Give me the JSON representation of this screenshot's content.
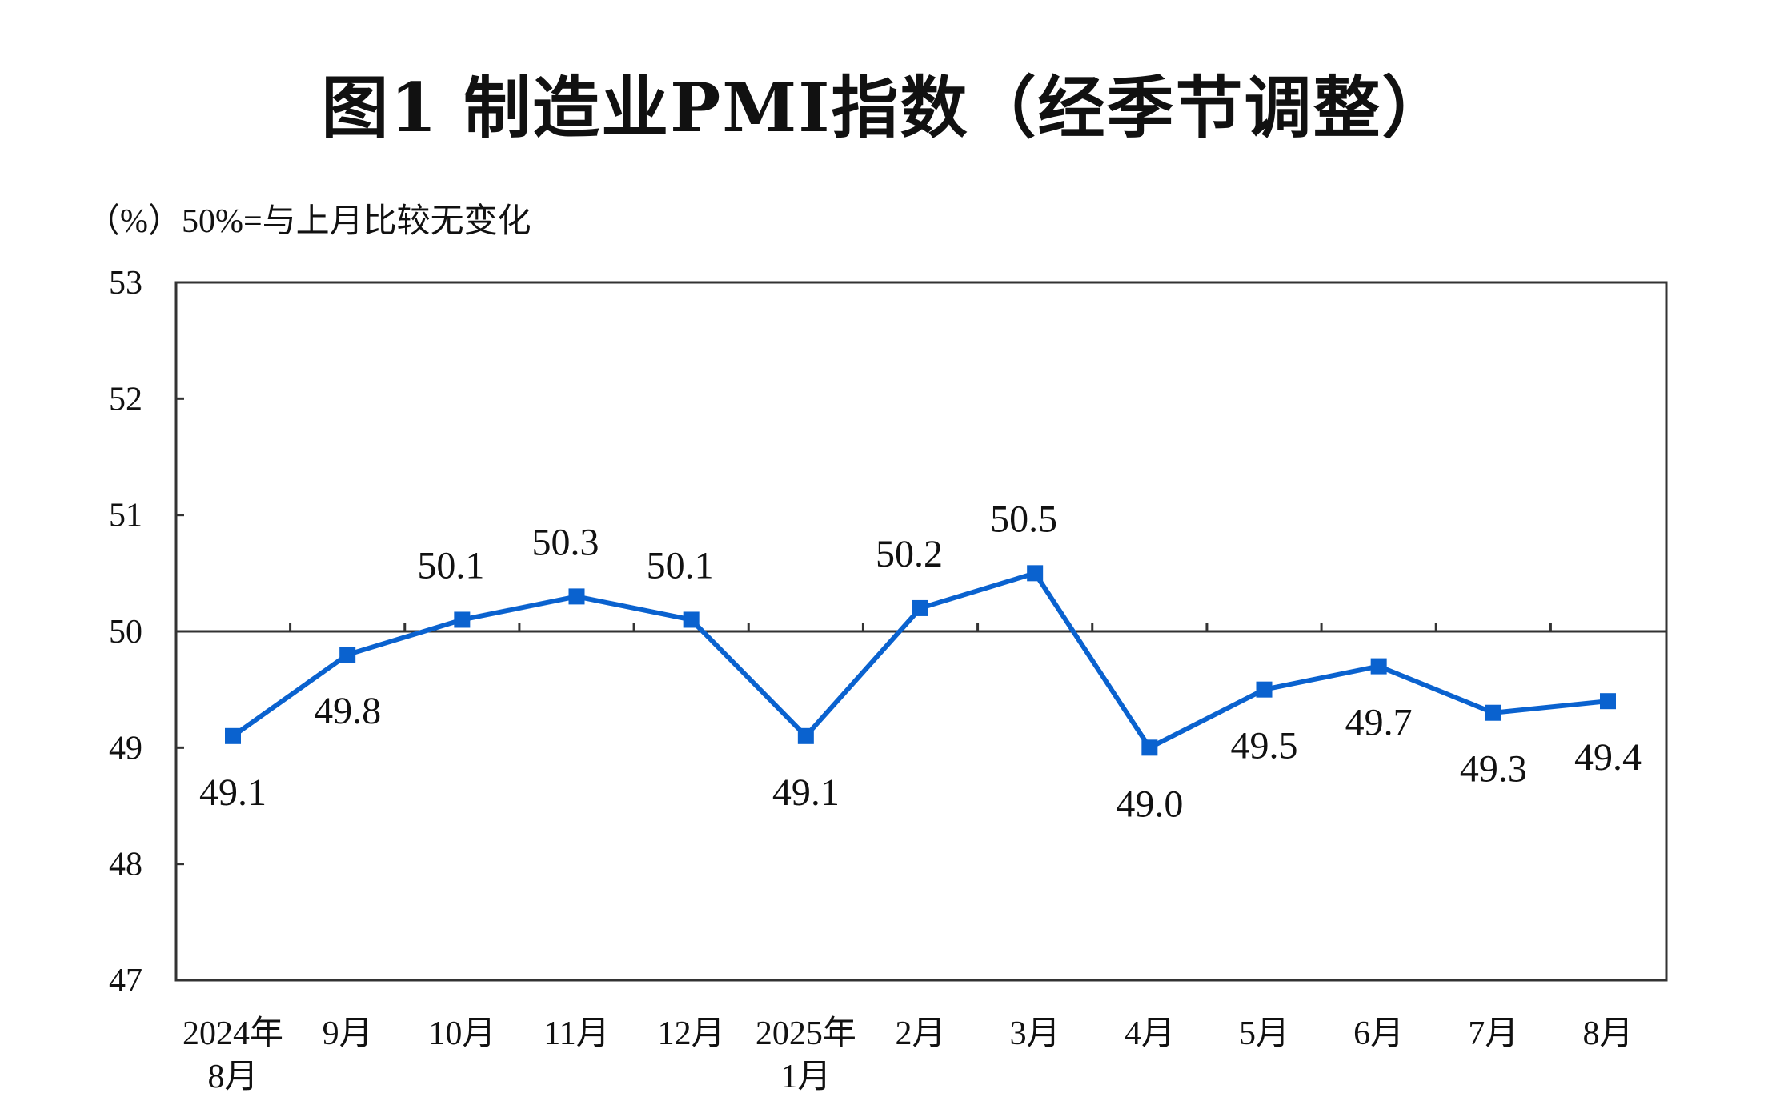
{
  "chart_data": {
    "type": "line",
    "title": "图1  制造业PMI指数（经季节调整）",
    "unit_note": "（%）50%=与上月比较无变化",
    "categories": [
      [
        "2024年",
        "8月"
      ],
      [
        "9月"
      ],
      [
        "10月"
      ],
      [
        "11月"
      ],
      [
        "12月"
      ],
      [
        "2025年",
        "1月"
      ],
      [
        "2月"
      ],
      [
        "3月"
      ],
      [
        "4月"
      ],
      [
        "5月"
      ],
      [
        "6月"
      ],
      [
        "7月"
      ],
      [
        "8月"
      ]
    ],
    "values": [
      49.1,
      49.8,
      50.1,
      50.3,
      50.1,
      49.1,
      50.2,
      50.5,
      49.0,
      49.5,
      49.7,
      49.3,
      49.4
    ],
    "data_labels": [
      "49.1",
      "49.8",
      "50.1",
      "50.3",
      "50.1",
      "49.1",
      "50.2",
      "50.5",
      "49.0",
      "49.5",
      "49.7",
      "49.3",
      "49.4"
    ],
    "label_positions": [
      "below",
      "below",
      "above",
      "above",
      "above",
      "below",
      "above",
      "above",
      "below",
      "below",
      "below",
      "below",
      "below"
    ],
    "ylim": [
      47,
      53
    ],
    "yticks": [
      "47",
      "48",
      "49",
      "50",
      "51",
      "52",
      "53"
    ],
    "reference_line": 50,
    "grid": false,
    "legend": "none",
    "colors": {
      "series": "#0a62cf",
      "axis": "#333333"
    }
  }
}
